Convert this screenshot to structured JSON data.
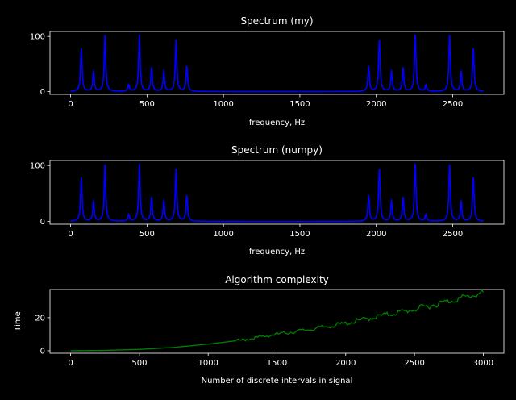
{
  "chart_data": [
    {
      "type": "line",
      "title": "Spectrum (my)",
      "xlabel": "frequency, Hz",
      "ylabel": "",
      "xlim": [
        -135,
        2835
      ],
      "ylim": [
        -5,
        109
      ],
      "xticks": [
        "0",
        "500",
        "1000",
        "1500",
        "2000",
        "2500"
      ],
      "yticks": [
        "0",
        "100"
      ],
      "grid": false,
      "color": "#0000ff",
      "x_range": [
        0,
        2700
      ],
      "peaks": [
        {
          "x": 70,
          "y": 78
        },
        {
          "x": 150,
          "y": 35
        },
        {
          "x": 225,
          "y": 102
        },
        {
          "x": 380,
          "y": 12
        },
        {
          "x": 450,
          "y": 103
        },
        {
          "x": 530,
          "y": 43
        },
        {
          "x": 610,
          "y": 36
        },
        {
          "x": 690,
          "y": 94
        },
        {
          "x": 760,
          "y": 46
        },
        {
          "x": 1950,
          "y": 46
        },
        {
          "x": 2020,
          "y": 93
        },
        {
          "x": 2100,
          "y": 36
        },
        {
          "x": 2175,
          "y": 43
        },
        {
          "x": 2255,
          "y": 103
        },
        {
          "x": 2325,
          "y": 12
        },
        {
          "x": 2480,
          "y": 102
        },
        {
          "x": 2555,
          "y": 35
        },
        {
          "x": 2635,
          "y": 78
        }
      ]
    },
    {
      "type": "line",
      "title": "Spectrum (numpy)",
      "xlabel": "frequency, Hz",
      "ylabel": "",
      "xlim": [
        -135,
        2835
      ],
      "ylim": [
        -5,
        109
      ],
      "xticks": [
        "0",
        "500",
        "1000",
        "1500",
        "2000",
        "2500"
      ],
      "yticks": [
        "0",
        "100"
      ],
      "grid": false,
      "color": "#0000ff",
      "x_range": [
        0,
        2700
      ],
      "peaks": [
        {
          "x": 70,
          "y": 78
        },
        {
          "x": 150,
          "y": 35
        },
        {
          "x": 225,
          "y": 102
        },
        {
          "x": 380,
          "y": 12
        },
        {
          "x": 450,
          "y": 103
        },
        {
          "x": 530,
          "y": 43
        },
        {
          "x": 610,
          "y": 36
        },
        {
          "x": 690,
          "y": 94
        },
        {
          "x": 760,
          "y": 46
        },
        {
          "x": 1950,
          "y": 46
        },
        {
          "x": 2020,
          "y": 93
        },
        {
          "x": 2100,
          "y": 36
        },
        {
          "x": 2175,
          "y": 43
        },
        {
          "x": 2255,
          "y": 103
        },
        {
          "x": 2325,
          "y": 12
        },
        {
          "x": 2480,
          "y": 102
        },
        {
          "x": 2555,
          "y": 35
        },
        {
          "x": 2635,
          "y": 78
        }
      ]
    },
    {
      "type": "line",
      "title": "Algorithm complexity",
      "xlabel": "Number of discrete intervals in signal",
      "ylabel": "Time",
      "xlim": [
        -150,
        3150
      ],
      "ylim": [
        -1.5,
        37
      ],
      "xticks": [
        "0",
        "500",
        "1000",
        "1500",
        "2000",
        "2500",
        "3000"
      ],
      "yticks": [
        "0",
        "20"
      ],
      "grid": false,
      "color": "#008000",
      "x": [
        0,
        250,
        500,
        750,
        1000,
        1250,
        1500,
        1750,
        2000,
        2250,
        2500,
        2750,
        3000
      ],
      "y": [
        0,
        0.2,
        0.8,
        2,
        4,
        6.5,
        10,
        13,
        16.5,
        21,
        25,
        30,
        35
      ]
    }
  ]
}
